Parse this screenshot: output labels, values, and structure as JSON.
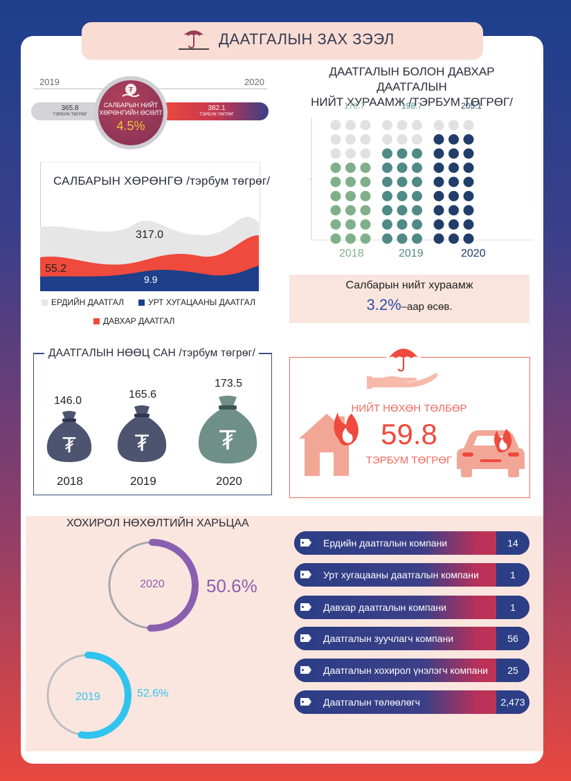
{
  "header": {
    "title": "ДААТГАЛЫН ЗАХ ЗЭЭЛ",
    "icon": "umbrella-icon"
  },
  "growth": {
    "year_left": "2019",
    "year_right": "2020",
    "left_value": "365.8",
    "left_unit": "ТЭРБУМ ТӨГРӨГ",
    "right_value": "382.1",
    "right_unit": "ТЭРБУМ ТӨГРӨГ",
    "circle_label_line1": "САЛБАРЫН НИЙТ",
    "circle_label_line2": "ХӨРӨНГИЙН ӨСӨЛТ",
    "circle_value": "4.5%"
  },
  "assets": {
    "title": "САЛБАРЫН ХӨРӨНГӨ /тэрбум төгрөг/",
    "val_general": "317.0",
    "val_re": "55.2",
    "val_life": "9.9",
    "legend": [
      {
        "label": "ЕРДИЙН ДААТГАЛ",
        "color": "#e6e6e6"
      },
      {
        "label": "УРТ ХУГАЦААНЫ ДААТГАЛ",
        "color": "#1e3f8a"
      },
      {
        "label": "ДАВХАР ДААТГАЛ",
        "color": "#ee4a3d"
      }
    ]
  },
  "premium": {
    "title_line1": "ДААТГАЛЫН БОЛОН ДАВХАР ДААТГАЛЫН",
    "title_line2": "НИЙТ ХУРААМЖ  /ТЭРБУМ ТӨГРӨГ/",
    "columns": [
      {
        "year": "2018",
        "value": "178.7",
        "color": "#7fb08a"
      },
      {
        "year": "2019",
        "value": "198.7",
        "color": "#4f8a87"
      },
      {
        "year": "2020",
        "value": "205.1",
        "color": "#213e6a"
      }
    ],
    "summary_label": "Салбарын нийт хураамж",
    "summary_value": "3.2%",
    "summary_suffix": "–аар өсөв."
  },
  "reserves": {
    "title": "ДААТГАЛЫН НӨӨЦ САН /тэрбум төгрөг/",
    "items": [
      {
        "year": "2018",
        "value": "146.0"
      },
      {
        "year": "2019",
        "value": "165.6"
      },
      {
        "year": "2020",
        "value": "173.5"
      }
    ]
  },
  "claims": {
    "title": "НИЙТ НӨХӨН ТӨЛБӨР",
    "value": "59.8",
    "unit": "ТЭРБУМ ТӨГРӨГ"
  },
  "loss_ratio": {
    "title": "ХОХИРОЛ НӨХӨЛТИЙН ХАРЬЦАА",
    "items": [
      {
        "year": "2020",
        "value": "50.6%",
        "fraction": 0.506,
        "color": "#8b5fb0"
      },
      {
        "year": "2019",
        "value": "52.6%",
        "fraction": 0.526,
        "color": "#2fc4ee"
      }
    ]
  },
  "companies": [
    {
      "label": "Ердийн даатгалын компани",
      "value": "14"
    },
    {
      "label": "Урт хугацааны даатгалын компани",
      "value": "1"
    },
    {
      "label": "Давхар даатгалын компани",
      "value": "1"
    },
    {
      "label": "Даатгалын зуучлагч компани",
      "value": "56"
    },
    {
      "label": "Даатгалын хохирол үнэлэгч компани",
      "value": "25"
    },
    {
      "label": "Даатгалын төлөөлөгч",
      "value": "2,473"
    }
  ]
}
